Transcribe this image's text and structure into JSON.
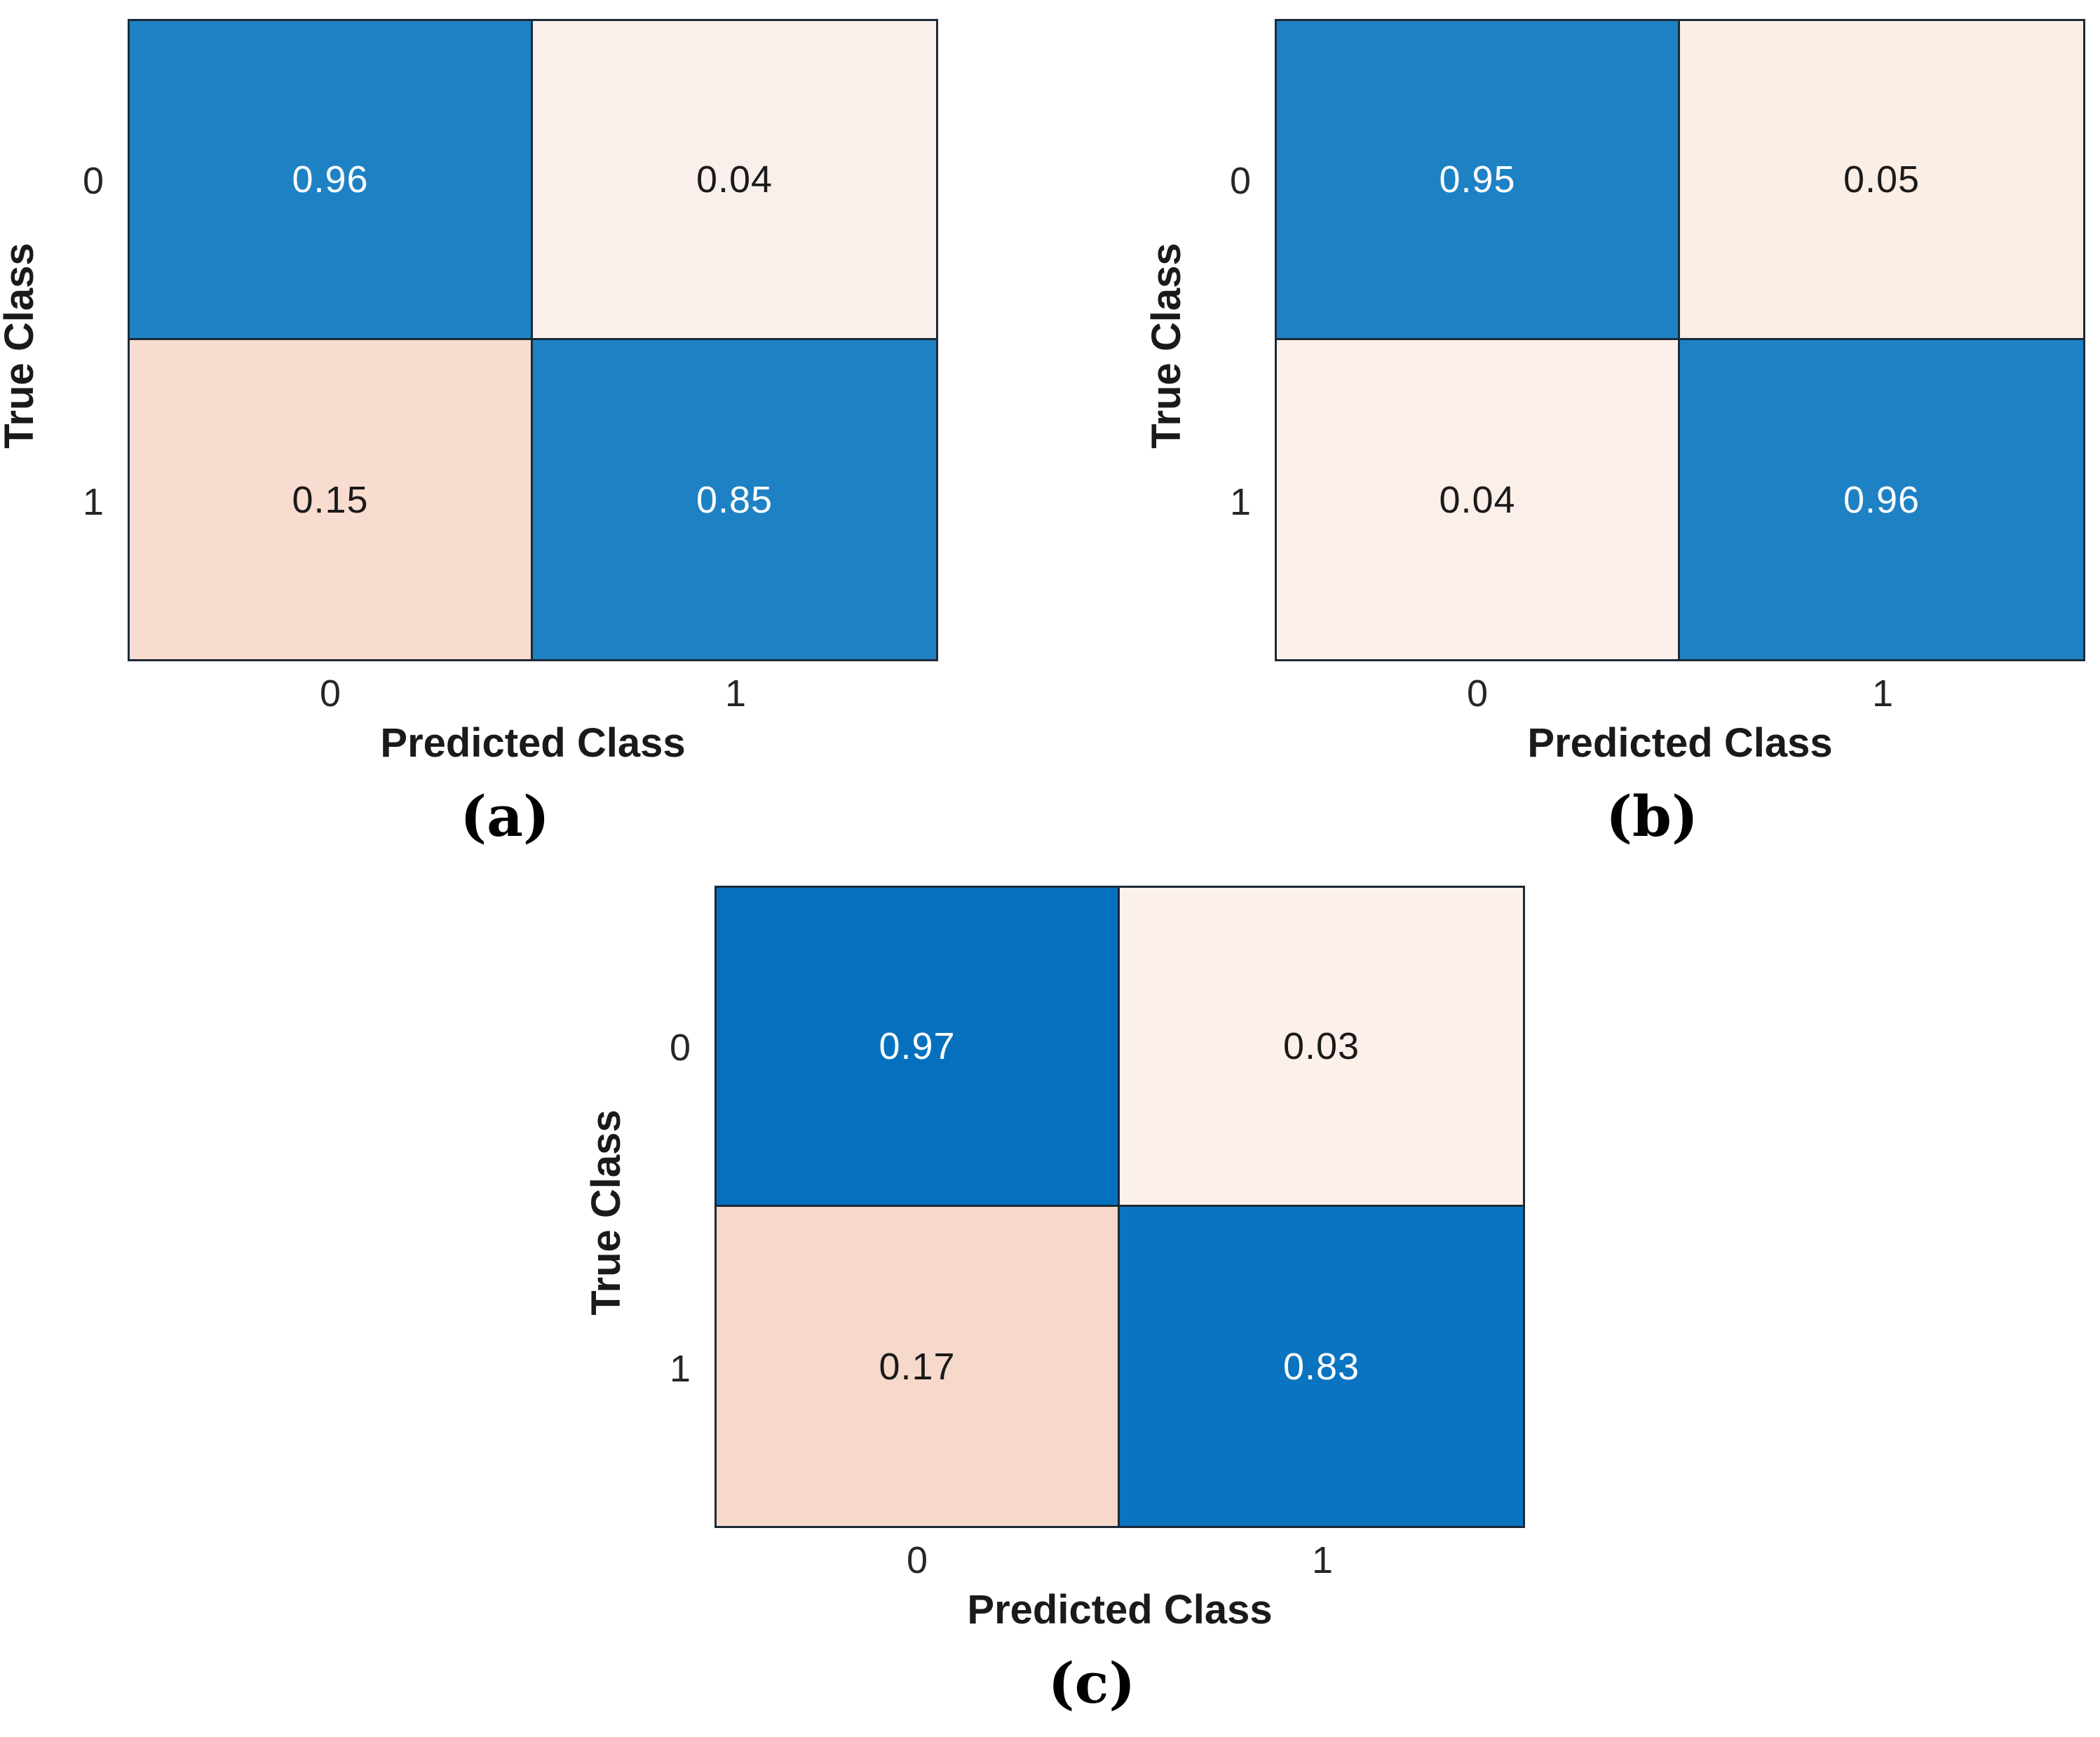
{
  "figure": {
    "xlabel": "Predicted Class",
    "ylabel": "True Class",
    "panels": [
      {
        "label": "(a)",
        "y_ticks": [
          "0",
          "1"
        ],
        "x_ticks": [
          "0",
          "1"
        ],
        "cells": [
          {
            "value": "0.96",
            "bg": "#1e81c4",
            "fg": "#ffffff"
          },
          {
            "value": "0.04",
            "bg": "#faf0eb",
            "fg": "#1a1a1a"
          },
          {
            "value": "0.15",
            "bg": "#f8dcd0",
            "fg": "#1a1a1a"
          },
          {
            "value": "0.85",
            "bg": "#1e81c4",
            "fg": "#ffffff"
          }
        ]
      },
      {
        "label": "(b)",
        "y_ticks": [
          "0",
          "1"
        ],
        "x_ticks": [
          "0",
          "1"
        ],
        "cells": [
          {
            "value": "0.95",
            "bg": "#1e81c4",
            "fg": "#ffffff"
          },
          {
            "value": "0.05",
            "bg": "#faeee5",
            "fg": "#1a1a1a"
          },
          {
            "value": "0.04",
            "bg": "#fbf0e9",
            "fg": "#1a1a1a"
          },
          {
            "value": "0.96",
            "bg": "#1e81c4",
            "fg": "#ffffff"
          }
        ]
      },
      {
        "label": "(c)",
        "y_ticks": [
          "0",
          "1"
        ],
        "x_ticks": [
          "0",
          "1"
        ],
        "cells": [
          {
            "value": "0.97",
            "bg": "#0571be",
            "fg": "#ffffff"
          },
          {
            "value": "0.03",
            "bg": "#fbf0ea",
            "fg": "#1a1a1a"
          },
          {
            "value": "0.17",
            "bg": "#f6d9cb",
            "fg": "#1a1a1a"
          },
          {
            "value": "0.83",
            "bg": "#0b74c0",
            "fg": "#ffffff"
          }
        ]
      }
    ]
  },
  "chart_data": [
    {
      "type": "heatmap",
      "panel": "(a)",
      "title": "",
      "xlabel": "Predicted Class",
      "ylabel": "True Class",
      "x_categories": [
        "0",
        "1"
      ],
      "y_categories": [
        "0",
        "1"
      ],
      "values": [
        [
          0.96,
          0.04
        ],
        [
          0.15,
          0.85
        ]
      ],
      "diagonal_color": "#1e81c4",
      "offdiagonal_color_base": "#f8dcd0",
      "grid": false,
      "legend": "none"
    },
    {
      "type": "heatmap",
      "panel": "(b)",
      "title": "",
      "xlabel": "Predicted Class",
      "ylabel": "True Class",
      "x_categories": [
        "0",
        "1"
      ],
      "y_categories": [
        "0",
        "1"
      ],
      "values": [
        [
          0.95,
          0.05
        ],
        [
          0.04,
          0.96
        ]
      ],
      "diagonal_color": "#1e81c4",
      "offdiagonal_color_base": "#faeee5",
      "grid": false,
      "legend": "none"
    },
    {
      "type": "heatmap",
      "panel": "(c)",
      "title": "",
      "xlabel": "Predicted Class",
      "ylabel": "True Class",
      "x_categories": [
        "0",
        "1"
      ],
      "y_categories": [
        "0",
        "1"
      ],
      "values": [
        [
          0.97,
          0.03
        ],
        [
          0.17,
          0.83
        ]
      ],
      "diagonal_color": "#0571be",
      "offdiagonal_color_base": "#f6d9cb",
      "grid": false,
      "legend": "none"
    }
  ]
}
